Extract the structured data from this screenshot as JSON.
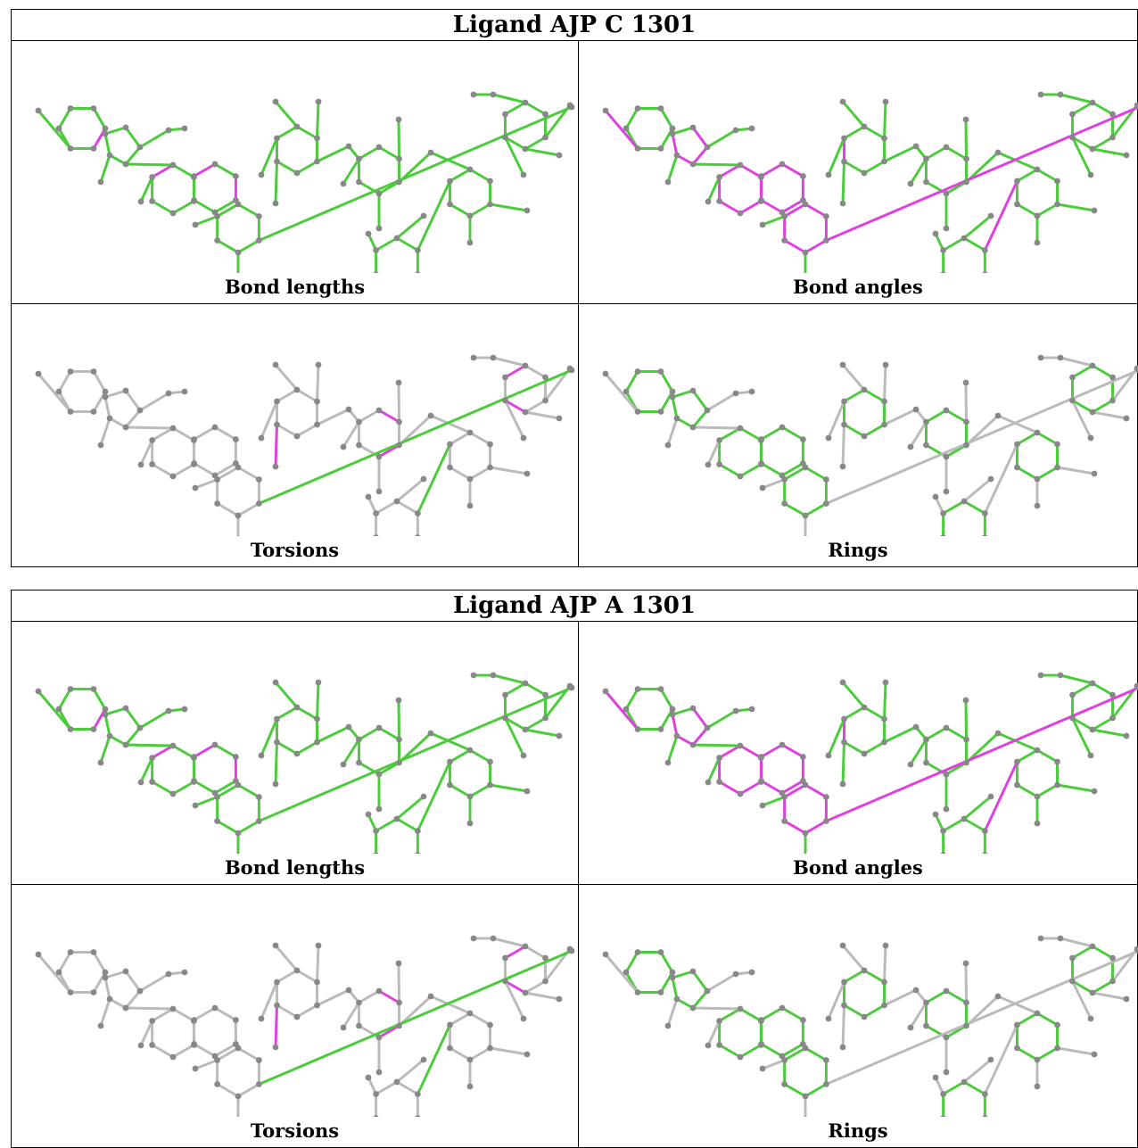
{
  "colors": {
    "ok": "#4ccc3c",
    "outlier": "#e040e0",
    "neutral": "#bbbbbb",
    "atom": "#888888"
  },
  "tables": [
    {
      "title": "Ligand AJP C 1301",
      "panels": [
        {
          "caption": "Bond lengths",
          "mode": "lengths"
        },
        {
          "caption": "Bond angles",
          "mode": "angles"
        },
        {
          "caption": "Torsions",
          "mode": "torsions"
        },
        {
          "caption": "Rings",
          "mode": "rings"
        }
      ]
    },
    {
      "title": "Ligand AJP A 1301",
      "panels": [
        {
          "caption": "Bond lengths",
          "mode": "lengths"
        },
        {
          "caption": "Bond angles",
          "mode": "angles"
        },
        {
          "caption": "Torsions",
          "mode": "torsions"
        },
        {
          "caption": "Rings",
          "mode": "rings"
        }
      ]
    }
  ]
}
